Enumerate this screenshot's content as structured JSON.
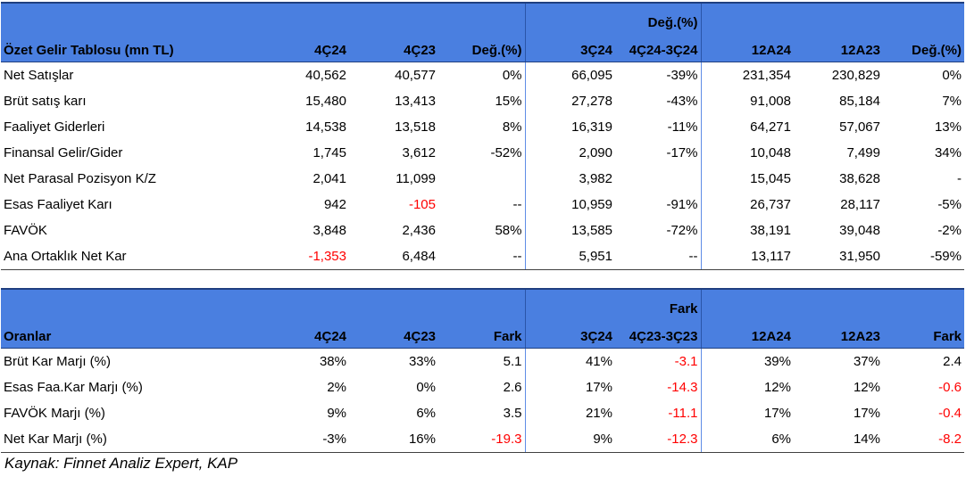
{
  "income_table": {
    "headers": [
      "Özet Gelir Tablosu (mn TL)",
      "4Ç24",
      "4Ç23",
      "Değ.(%)",
      "3Ç24",
      "Değ.(%) 4Ç24-3Ç24",
      "12A24",
      "12A23",
      "Değ.(%)"
    ],
    "header_top_line": "Değ.(%)",
    "header_bottom_line": "4Ç24-3Ç24",
    "rows": [
      {
        "label": "Net Satışlar",
        "cells": [
          "40,562",
          "40,577",
          "0%",
          "66,095",
          "-39%",
          "231,354",
          "230,829",
          "0%"
        ]
      },
      {
        "label": "Brüt satış karı",
        "cells": [
          "15,480",
          "13,413",
          "15%",
          "27,278",
          "-43%",
          "91,008",
          "85,184",
          "7%"
        ]
      },
      {
        "label": "Faaliyet Giderleri",
        "cells": [
          "14,538",
          "13,518",
          "8%",
          "16,319",
          "-11%",
          "64,271",
          "57,067",
          "13%"
        ]
      },
      {
        "label": "Finansal Gelir/Gider",
        "cells": [
          "1,745",
          "3,612",
          "-52%",
          "2,090",
          "-17%",
          "10,048",
          "7,499",
          "34%"
        ]
      },
      {
        "label": "Net Parasal Pozisyon K/Z",
        "cells": [
          "2,041",
          "11,099",
          "",
          "3,982",
          "",
          "15,045",
          "38,628",
          "-"
        ]
      },
      {
        "label": "Esas Faaliyet Karı",
        "cells": [
          "942",
          "-105",
          "--",
          "10,959",
          "-91%",
          "26,737",
          "28,117",
          "-5%"
        ]
      },
      {
        "label": "FAVÖK",
        "cells": [
          "3,848",
          "2,436",
          "58%",
          "13,585",
          "-72%",
          "38,191",
          "39,048",
          "-2%"
        ]
      },
      {
        "label": "Ana Ortaklık Net Kar",
        "cells": [
          "-1,353",
          "6,484",
          "--",
          "5,951",
          "--",
          "13,117",
          "31,950",
          "-59%"
        ]
      }
    ]
  },
  "ratio_table": {
    "headers": [
      "Oranlar",
      "4Ç24",
      "4Ç23",
      "Fark",
      "3Ç24",
      "Fark 4Ç23-3Ç23",
      "12A24",
      "12A23",
      "Fark"
    ],
    "header_top_line": "Fark",
    "header_bottom_line": "4Ç23-3Ç23",
    "rows": [
      {
        "label": "Brüt Kar Marjı (%)",
        "cells": [
          "38%",
          "33%",
          "5.1",
          "41%",
          "-3.1",
          "39%",
          "37%",
          "2.4"
        ]
      },
      {
        "label": "Esas Faa.Kar Marjı (%)",
        "cells": [
          "2%",
          "0%",
          "2.6",
          "17%",
          "-14.3",
          "12%",
          "12%",
          "-0.6"
        ]
      },
      {
        "label": "FAVÖK Marjı (%)",
        "cells": [
          "9%",
          "6%",
          "3.5",
          "21%",
          "-11.1",
          "17%",
          "17%",
          "-0.4"
        ]
      },
      {
        "label": "Net Kar Marjı (%)",
        "cells": [
          "-3%",
          "16%",
          "-19.3",
          "9%",
          "-12.3",
          "6%",
          "14%",
          "-8.2"
        ]
      }
    ]
  },
  "source": "Kaynak: Finnet Analiz Expert, KAP",
  "colors": {
    "header_bg": "#4a7fe0",
    "negative": "#ff0000"
  }
}
